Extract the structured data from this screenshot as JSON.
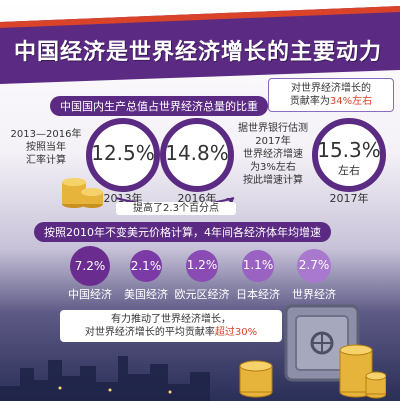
{
  "title": "中国经济是世界经济增长的主要动力",
  "corner_note": {
    "line1": "对世界经济增长的",
    "line2_pre": "贡献率为",
    "line2_highlight": "34%左右"
  },
  "section1_heading": "中国国内生产总值占世界经济总量的比重",
  "left_note": [
    "2013—2016年",
    "按照当年",
    "汇率计算"
  ],
  "worldbank_note": [
    "据世界银行估测",
    "2017年",
    "世界经济增速",
    "为3%左右",
    "按此增速计算"
  ],
  "rings": [
    {
      "value": "12.5%",
      "year": "2013年"
    },
    {
      "value": "14.8%",
      "year": "2016年"
    },
    {
      "value": "15.3%",
      "sub": "左右",
      "year": "2017年"
    }
  ],
  "increase_note": "提高了2.3个百分点",
  "section2_heading": "按照2010年不变美元价格计算，4年间各经济体年均增速",
  "chart_data": {
    "type": "bar",
    "title": "按照2010年不变美元价格计算，4年间各经济体年均增速",
    "categories": [
      "中国经济",
      "美国经济",
      "欧元区经济",
      "日本经济",
      "世界经济"
    ],
    "values": [
      7.2,
      2.1,
      1.2,
      1.1,
      2.7
    ],
    "labels": [
      "7.2%",
      "2.1%",
      "1.2%",
      "1.1%",
      "2.7%"
    ],
    "colors": [
      "#6a2d8f",
      "#7b3aa6",
      "#8a4cb4",
      "#9a62c2",
      "#a978cf"
    ]
  },
  "bottom_note": {
    "line1": "有力推动了世界经济增长，",
    "line2_pre": "对世界经济增长的平均贡献率",
    "line2_highlight": "超过30%"
  },
  "colors": {
    "primary": "#5b2a83",
    "accent": "#d8432a",
    "gold": "#e7b43b"
  }
}
